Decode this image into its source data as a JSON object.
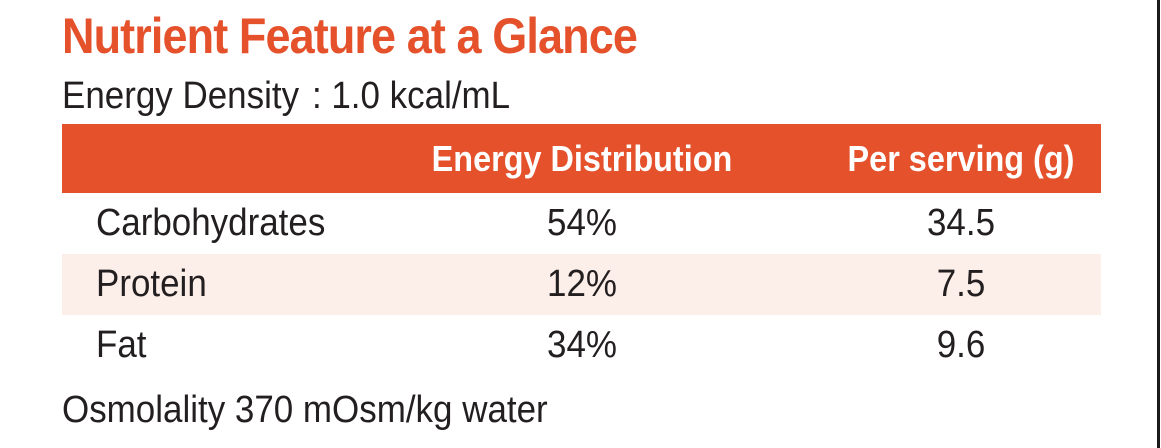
{
  "title": "Nutrient Feature at a Glance",
  "energy_density": {
    "label": "Energy Density",
    "value": ": 1.0 kcal/mL"
  },
  "table": {
    "headers": [
      "",
      "Energy Distribution",
      "Per serving (g)"
    ],
    "rows": [
      {
        "name": "Carbohydrates",
        "energy": "54%",
        "serving": "34.5"
      },
      {
        "name": "Protein",
        "energy": "12%",
        "serving": "7.5"
      },
      {
        "name": "Fat",
        "energy": "34%",
        "serving": "9.6"
      }
    ]
  },
  "osmolality": "Osmolality 370 mOsm/kg water",
  "colors": {
    "accent": "#e4512b",
    "row_shade": "#fceee8",
    "text": "#231f20"
  }
}
